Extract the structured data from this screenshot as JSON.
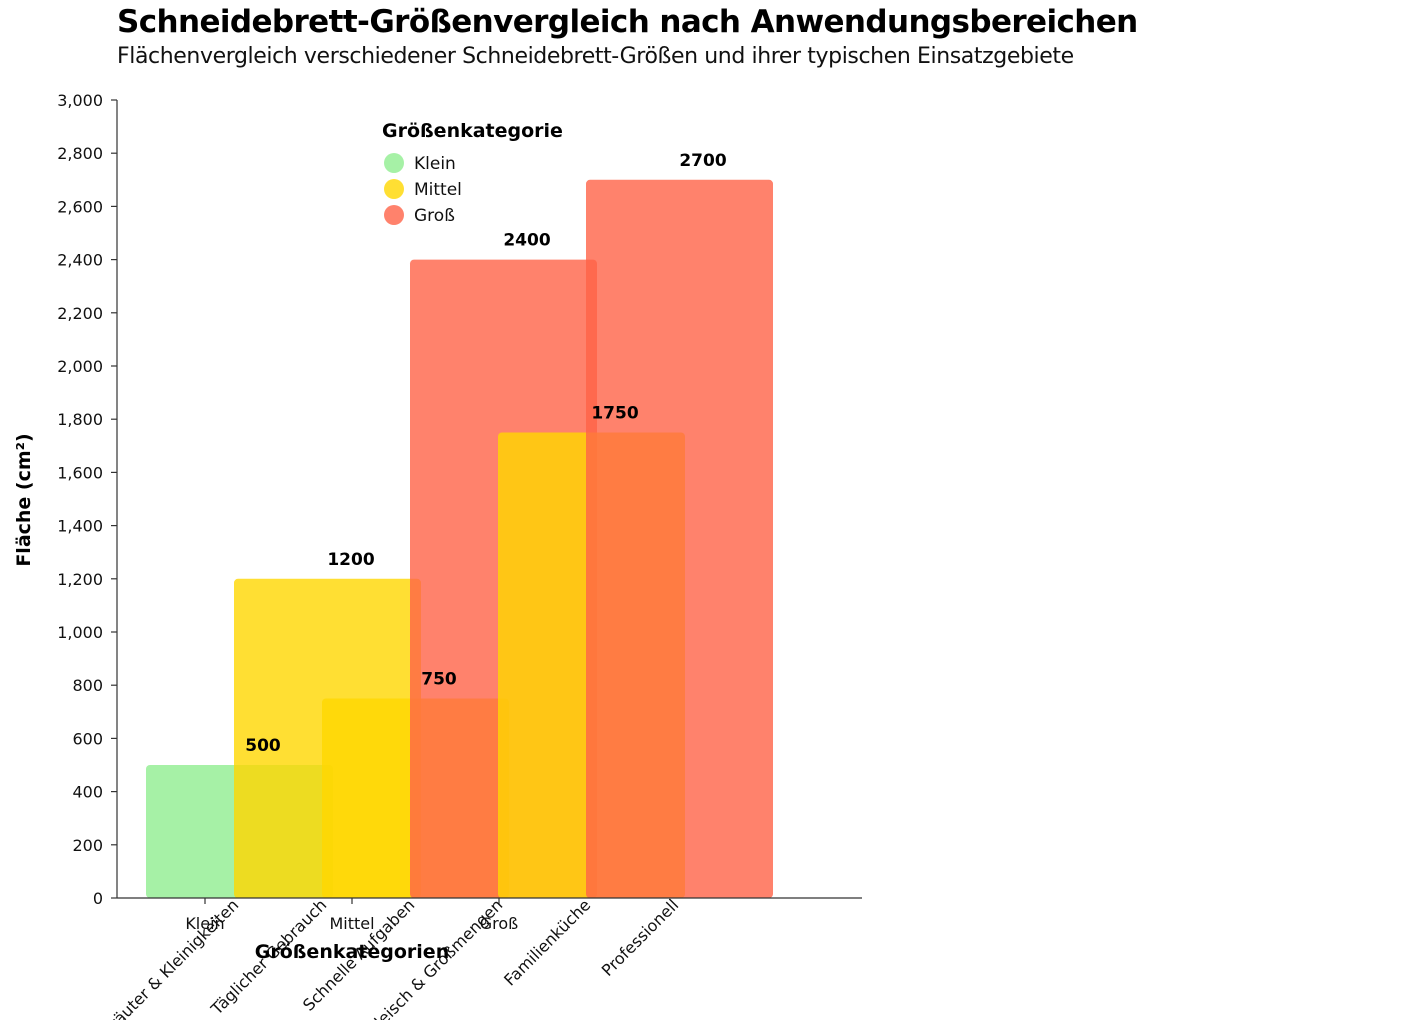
{
  "title": "Schneidebrett-Größenvergleich nach Anwendungsbereichen",
  "subtitle": "Flächenvergleich verschiedener Schneidebrett-Größen und ihrer typischen Einsatzgebiete",
  "legend": {
    "title": "Größenkategorie",
    "items": [
      {
        "label": "Klein",
        "color": "#90ee90"
      },
      {
        "label": "Mittel",
        "color": "#ffd700"
      },
      {
        "label": "Groß",
        "color": "#ff6347"
      }
    ]
  },
  "chart_data": {
    "type": "bar",
    "title": "Schneidebrett-Größenvergleich nach Anwendungsbereichen",
    "subtitle": "Flächenvergleich verschiedener Schneidebrett-Größen und ihrer typischen Einsatzgebiete",
    "xlabel": "Größenkategorien",
    "ylabel": "Fläche (cm²)",
    "ylim": [
      0,
      3000
    ],
    "yticks": [
      0,
      200,
      400,
      600,
      800,
      1000,
      1200,
      1400,
      1600,
      1800,
      2000,
      2200,
      2400,
      2600,
      2800,
      3000
    ],
    "ytick_labels": [
      "0",
      "200",
      "400",
      "600",
      "800",
      "1,000",
      "1,200",
      "1,400",
      "1,600",
      "1,800",
      "2,000",
      "2,200",
      "2,400",
      "2,600",
      "2,800",
      "3,000"
    ],
    "categories": [
      "Klein",
      "Mittel",
      "Groß"
    ],
    "bars": [
      {
        "use": "Kräuter & Kleinigkeiten",
        "category": "Klein",
        "value": 500,
        "color": "#90ee90"
      },
      {
        "use": "Täglicher Gebrauch",
        "category": "Mittel",
        "value": 1200,
        "color": "#ffd700"
      },
      {
        "use": "Schnelle Aufgaben",
        "category": "Mittel",
        "value": 750,
        "color": "#ffd700"
      },
      {
        "use": "Fleisch & Großmengen",
        "category": "Groß",
        "value": 2400,
        "color": "#ff6347"
      },
      {
        "use": "Familienküche",
        "category": "Mittel",
        "value": 1750,
        "color": "#ffd700"
      },
      {
        "use": "Professionell",
        "category": "Groß",
        "value": 2700,
        "color": "#ff6347"
      }
    ],
    "legend_position": "top-center",
    "grid": false
  }
}
